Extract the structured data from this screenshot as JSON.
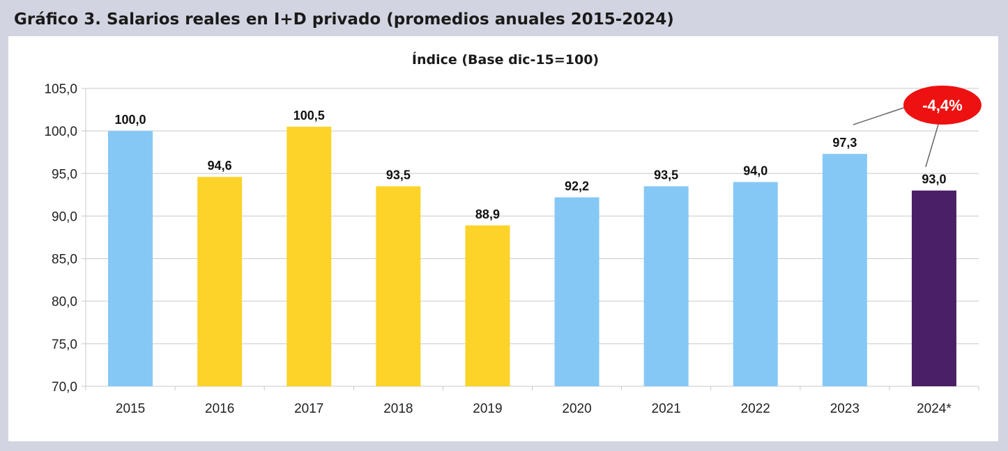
{
  "figure": {
    "title": "Gráfico 3. Salarios reales en I+D privado (promedios anuales 2015-2024)"
  },
  "chart_data": {
    "type": "bar",
    "title": "Índice (Base dic-15=100)",
    "xlabel": "",
    "ylabel": "",
    "ylim": [
      70,
      105
    ],
    "yticks": [
      70,
      75,
      80,
      85,
      90,
      95,
      100,
      105
    ],
    "ytick_labels": [
      "70,0",
      "75,0",
      "80,0",
      "85,0",
      "90,0",
      "95,0",
      "100,0",
      "105,0"
    ],
    "grid": true,
    "categories": [
      "2015",
      "2016",
      "2017",
      "2018",
      "2019",
      "2020",
      "2021",
      "2022",
      "2023",
      "2024*"
    ],
    "values": [
      100.0,
      94.6,
      100.5,
      93.5,
      88.9,
      92.2,
      93.5,
      94.0,
      97.3,
      93.0
    ],
    "value_labels": [
      "100,0",
      "94,6",
      "100,5",
      "93,5",
      "88,9",
      "92,2",
      "93,5",
      "94,0",
      "97,3",
      "93,0"
    ],
    "bar_colors": [
      "#85c8f6",
      "#fdd32a",
      "#fdd32a",
      "#fdd32a",
      "#fdd32a",
      "#85c8f6",
      "#85c8f6",
      "#85c8f6",
      "#85c8f6",
      "#4b1f68"
    ],
    "annotation": {
      "text": "-4,4%",
      "from_category": "2023",
      "to_category": "2024*",
      "color": "#ee1111"
    }
  }
}
